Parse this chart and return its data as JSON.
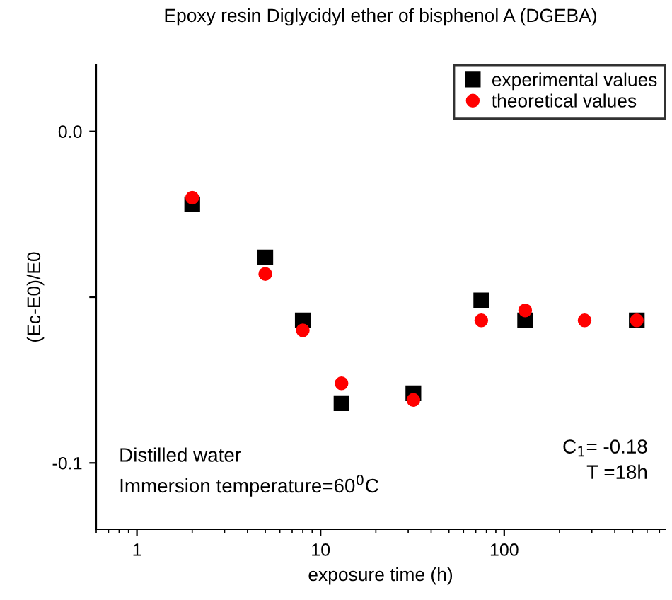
{
  "chart_data": {
    "type": "scatter",
    "title": "Epoxy resin Diglycidyl ether of bisphenol A (DGEBA)",
    "xlabel": "exposure time (h)",
    "ylabel": "(Ec-E0)/E0",
    "log": "x",
    "xlim": [
      0.6,
      750
    ],
    "xticks": [
      1,
      10,
      100
    ],
    "ylim": [
      -0.12,
      0.02
    ],
    "yticks": [
      {
        "value": 0.0,
        "label": "0.0"
      },
      {
        "value": -0.05,
        "label": null
      },
      {
        "value": -0.1,
        "label": "-0.1"
      }
    ],
    "legend": "top right",
    "grid": false,
    "series": [
      {
        "name": "experimental values",
        "color": "#000000",
        "marker": "square",
        "x": [
          2,
          5,
          8,
          13,
          32,
          75,
          130,
          527
        ],
        "values": [
          -0.022,
          -0.038,
          -0.057,
          -0.082,
          -0.079,
          -0.051,
          -0.057,
          -0.057
        ]
      },
      {
        "name": "theoretical values",
        "color": "#ff0000",
        "marker": "circle",
        "x": [
          2,
          5,
          8,
          13,
          32,
          75,
          130,
          274,
          527
        ],
        "values": [
          -0.02,
          -0.043,
          -0.06,
          -0.076,
          -0.081,
          -0.057,
          -0.054,
          -0.057,
          -0.057
        ]
      }
    ],
    "annotations": [
      "Distilled water\nImmersion temperature=60$^{0}$C",
      "C$_{1}$= -0.18\nT =18h"
    ]
  }
}
